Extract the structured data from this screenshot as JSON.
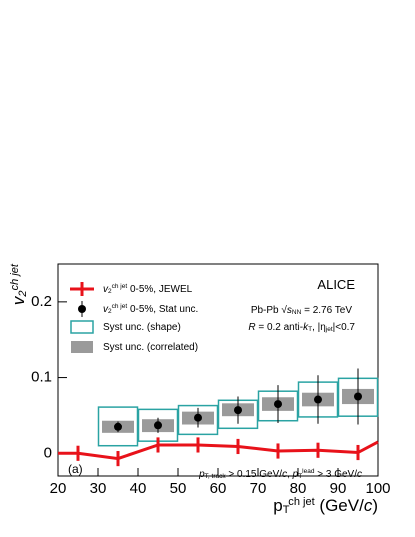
{
  "chart_data": {
    "type": "errorbar",
    "y_label": [
      {
        "text": "v"
      },
      {
        "text": "2",
        "shift": "sub"
      },
      {
        "text": "ch jet",
        "shift": "sup"
      }
    ],
    "x_label": [
      {
        "text": "p"
      },
      {
        "text": "T",
        "shift": "sub"
      },
      {
        "text": "ch jet",
        "shift": "sup"
      },
      {
        "text": " (GeV/"
      },
      {
        "text": "c",
        "italic": true
      },
      {
        "text": ")"
      }
    ],
    "xlim": [
      20,
      100
    ],
    "xticks": [
      20,
      30,
      40,
      50,
      60,
      70,
      80,
      90,
      100
    ],
    "ylim": [
      -0.03,
      0.25
    ],
    "yticks": [
      0,
      0.1,
      0.2
    ],
    "series": [
      {
        "name": [
          {
            "text": "v",
            "italic": true
          },
          {
            "text": "2",
            "shift": "sub"
          },
          {
            "text": "ch jet",
            "shift": "sup"
          },
          {
            "text": " 0-5%, JEWEL"
          }
        ],
        "kind": "line",
        "color": "#e8121a",
        "x": [
          20,
          25,
          35,
          45,
          55,
          65,
          75,
          85,
          95,
          100
        ],
        "values": [
          0,
          0,
          -0.007,
          0.011,
          0.011,
          0.009,
          0.003,
          0.004,
          0.001,
          0.015
        ],
        "errors": [
          null,
          0.01,
          0.01,
          0.01,
          0.01,
          0.01,
          0.01,
          0.01,
          0.01,
          null
        ]
      },
      {
        "name": [
          {
            "text": "v",
            "italic": true
          },
          {
            "text": "2",
            "shift": "sub"
          },
          {
            "text": "ch jet",
            "shift": "sup"
          },
          {
            "text": " 0-5%, Stat unc."
          }
        ],
        "kind": "points",
        "color": "#000000",
        "x": [
          35,
          45,
          55,
          65,
          75,
          85,
          95
        ],
        "values": [
          0.035,
          0.037,
          0.047,
          0.057,
          0.065,
          0.071,
          0.075
        ],
        "errors": [
          0.007,
          0.01,
          0.013,
          0.018,
          0.025,
          0.032,
          0.037
        ]
      },
      {
        "name": [
          {
            "text": "Syst unc. (shape)"
          }
        ],
        "kind": "box",
        "color": "#2aa3a3",
        "x": [
          35,
          45,
          55,
          65,
          75,
          85,
          95
        ],
        "low": [
          0.01,
          0.016,
          0.025,
          0.033,
          0.043,
          0.048,
          0.049
        ],
        "high": [
          0.061,
          0.058,
          0.063,
          0.07,
          0.082,
          0.094,
          0.099
        ]
      },
      {
        "name": [
          {
            "text": "Syst unc. (correlated)"
          }
        ],
        "kind": "fill",
        "color": "#9a9a9a",
        "x": [
          35,
          45,
          55,
          65,
          75,
          85,
          95
        ],
        "low": [
          0.027,
          0.028,
          0.038,
          0.049,
          0.056,
          0.062,
          0.065
        ],
        "high": [
          0.043,
          0.045,
          0.055,
          0.066,
          0.074,
          0.08,
          0.085
        ]
      }
    ],
    "annotations": [
      [
        {
          "text": "ALICE"
        }
      ],
      [
        {
          "text": "Pb-Pb "
        },
        {
          "text": "√"
        },
        {
          "text": "s",
          "italic": true
        },
        {
          "text": "NN",
          "shift": "sub"
        },
        {
          "text": " = 2.76 TeV"
        }
      ],
      [
        {
          "text": "R",
          "italic": true
        },
        {
          "text": " = 0.2 anti-"
        },
        {
          "text": "k",
          "italic": true
        },
        {
          "text": "T",
          "shift": "sub"
        },
        {
          "text": ", |η"
        },
        {
          "text": "jet",
          "shift": "sub"
        },
        {
          "text": "|<0.7"
        }
      ],
      [
        {
          "text": "(a)"
        }
      ],
      [
        {
          "text": "p",
          "italic": true
        },
        {
          "text": "T, track",
          "shift": "sub"
        },
        {
          "text": " > 0.15 GeV/"
        },
        {
          "text": "c",
          "italic": true
        },
        {
          "text": ", "
        },
        {
          "text": "p",
          "italic": true
        },
        {
          "text": "T",
          "shift": "sub"
        },
        {
          "text": "lead",
          "shift": "sup"
        },
        {
          "text": " > 3 GeV/"
        },
        {
          "text": "c",
          "italic": true
        }
      ]
    ]
  }
}
